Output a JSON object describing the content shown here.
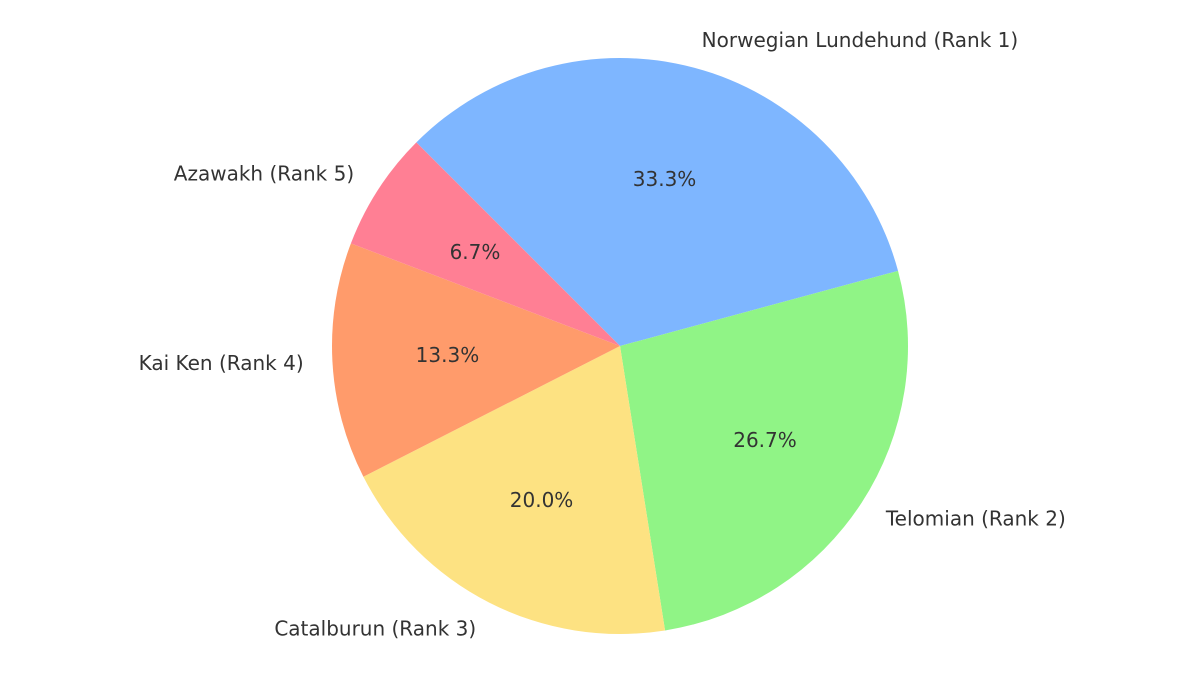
{
  "chart_data": {
    "type": "pie",
    "start_angle_deg": 135,
    "direction": "clockwise",
    "slices": [
      {
        "label": "Norwegian Lundehund (Rank 1)",
        "value": 33.3,
        "pct_text": "33.3%",
        "color": "#7eb6ff"
      },
      {
        "label": "Telomian (Rank 2)",
        "value": 26.7,
        "pct_text": "26.7%",
        "color": "#90f486"
      },
      {
        "label": "Catalburun (Rank 3)",
        "value": 20.0,
        "pct_text": "20.0%",
        "color": "#fde282"
      },
      {
        "label": "Kai Ken (Rank 4)",
        "value": 13.3,
        "pct_text": "13.3%",
        "color": "#ff9b6b"
      },
      {
        "label": "Azawakh (Rank 5)",
        "value": 6.7,
        "pct_text": "6.7%",
        "color": "#ff7f94"
      }
    ]
  }
}
